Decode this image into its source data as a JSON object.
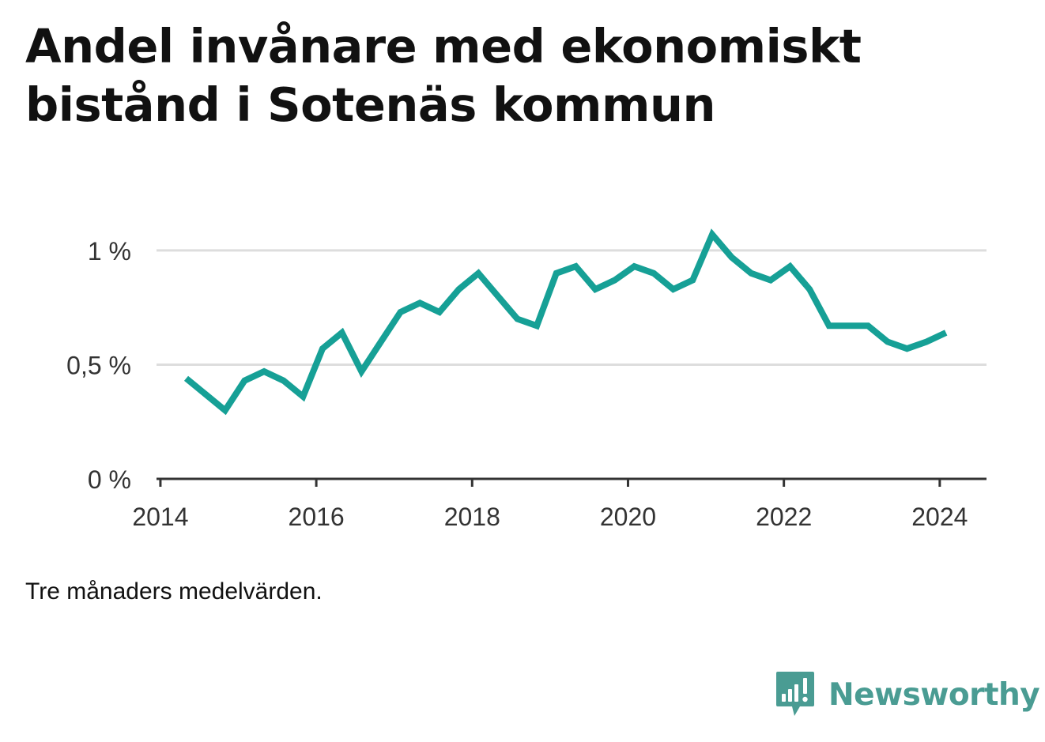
{
  "header": {
    "title": "Andel invånare med ekonomiskt bistånd i Sotenäs kommun"
  },
  "note": "Tre månaders medelvärden.",
  "brand": {
    "name": "Newsworthy",
    "color": "#4a9c93"
  },
  "colors": {
    "line": "#16a096",
    "grid": "#dddddd",
    "axis": "#333333"
  },
  "chart_data": {
    "type": "line",
    "title": "Andel invånare med ekonomiskt bistånd i Sotenäs kommun",
    "xlabel": "",
    "ylabel": "",
    "xlim": [
      2013.95,
      2024.6
    ],
    "ylim": [
      0,
      1.1
    ],
    "grid": true,
    "legend": "none",
    "x_ticks": [
      {
        "value": 2014,
        "label": "2014"
      },
      {
        "value": 2016,
        "label": "2016"
      },
      {
        "value": 2018,
        "label": "2018"
      },
      {
        "value": 2020,
        "label": "2020"
      },
      {
        "value": 2022,
        "label": "2022"
      },
      {
        "value": 2024,
        "label": "2024"
      }
    ],
    "y_ticks": [
      {
        "value": 0,
        "label": "0 %"
      },
      {
        "value": 0.5,
        "label": "0,5 %"
      },
      {
        "value": 1,
        "label": "1 %"
      }
    ],
    "series": [
      {
        "x": [
          2014.33,
          2014.58,
          2014.83,
          2015.08,
          2015.33,
          2015.58,
          2015.83,
          2016.08,
          2016.33,
          2016.58,
          2016.83,
          2017.08,
          2017.33,
          2017.58,
          2017.83,
          2018.08,
          2018.33,
          2018.58,
          2018.83,
          2019.08,
          2019.33,
          2019.58,
          2019.83,
          2020.08,
          2020.33,
          2020.58,
          2020.83,
          2021.08,
          2021.33,
          2021.58,
          2021.83,
          2022.08,
          2022.33,
          2022.58,
          2022.83,
          2023.08,
          2023.33,
          2023.58,
          2023.83,
          2024.08
        ],
        "values": [
          0.44,
          0.37,
          0.3,
          0.43,
          0.47,
          0.43,
          0.36,
          0.57,
          0.64,
          0.47,
          0.6,
          0.73,
          0.77,
          0.73,
          0.83,
          0.9,
          0.8,
          0.7,
          0.67,
          0.9,
          0.93,
          0.83,
          0.87,
          0.93,
          0.9,
          0.83,
          0.87,
          1.07,
          0.97,
          0.9,
          0.87,
          0.93,
          0.83,
          0.67,
          0.67,
          0.67,
          0.6,
          0.57,
          0.6,
          0.64
        ]
      }
    ]
  }
}
